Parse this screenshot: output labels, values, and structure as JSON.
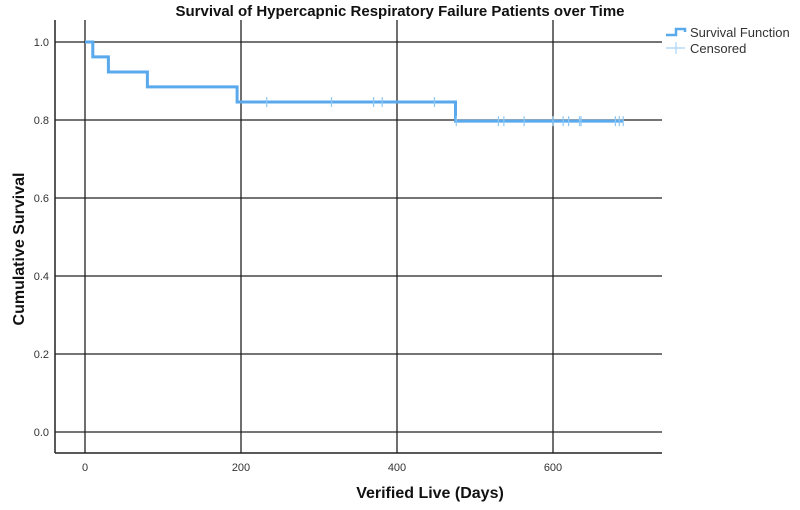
{
  "chart_data": {
    "type": "line",
    "subtype": "kaplan-meier-step",
    "title": "Survival of Hypercapnic Respiratory Failure Patients over Time",
    "xlabel": "Verified Live (Days)",
    "ylabel": "Cumulative Survival",
    "xlim": [
      -40,
      740
    ],
    "ylim": [
      -0.06,
      1.06
    ],
    "xticks": [
      0,
      200,
      400,
      600
    ],
    "yticks": [
      0.0,
      0.2,
      0.4,
      0.6,
      0.8,
      1.0
    ],
    "xtick_labels": [
      "0",
      "200",
      "400",
      "600"
    ],
    "ytick_labels": [
      "0.0",
      "0.2",
      "0.4",
      "0.6",
      "0.8",
      "1.0"
    ],
    "grid": true,
    "legend_position": "top-right outside",
    "series": [
      {
        "name": "Survival Function",
        "color": "#5aa9ec",
        "steps": [
          {
            "x": 0,
            "y": 1.0
          },
          {
            "x": 10,
            "y": 0.962
          },
          {
            "x": 30,
            "y": 0.923
          },
          {
            "x": 80,
            "y": 0.885
          },
          {
            "x": 195,
            "y": 0.846
          },
          {
            "x": 475,
            "y": 0.797
          },
          {
            "x": 690,
            "y": 0.797
          }
        ]
      },
      {
        "name": "Censored",
        "color": "#8ec8f4",
        "points": [
          {
            "x": 233,
            "y": 0.846
          },
          {
            "x": 316,
            "y": 0.846
          },
          {
            "x": 370,
            "y": 0.846
          },
          {
            "x": 381,
            "y": 0.846
          },
          {
            "x": 448,
            "y": 0.846
          },
          {
            "x": 476,
            "y": 0.797
          },
          {
            "x": 530,
            "y": 0.797
          },
          {
            "x": 537,
            "y": 0.797
          },
          {
            "x": 563,
            "y": 0.797
          },
          {
            "x": 600,
            "y": 0.797
          },
          {
            "x": 613,
            "y": 0.797
          },
          {
            "x": 620,
            "y": 0.797
          },
          {
            "x": 634,
            "y": 0.797
          },
          {
            "x": 636,
            "y": 0.797
          },
          {
            "x": 680,
            "y": 0.797
          },
          {
            "x": 685,
            "y": 0.797
          },
          {
            "x": 690,
            "y": 0.797
          }
        ]
      }
    ]
  },
  "legend": {
    "items": [
      {
        "label": "Survival Function"
      },
      {
        "label": "Censored"
      }
    ]
  }
}
